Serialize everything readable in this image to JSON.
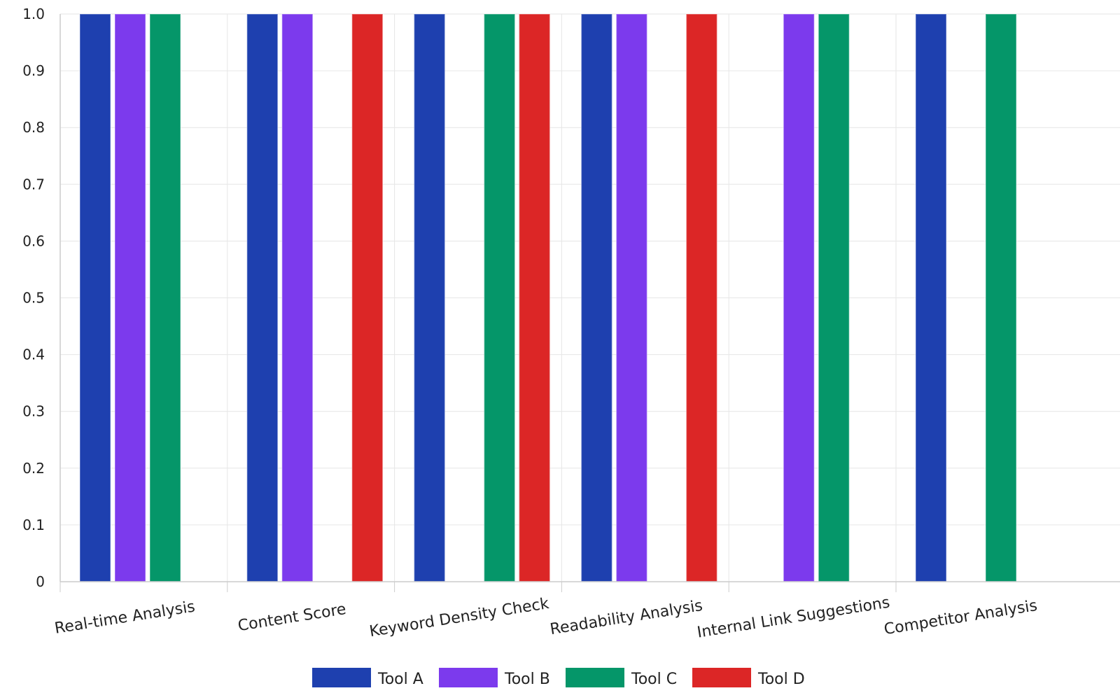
{
  "chart_data": {
    "type": "bar",
    "title": "",
    "xlabel": "",
    "ylabel": "",
    "ylim": [
      0,
      1
    ],
    "yticks": [
      "0",
      "0.1",
      "0.2",
      "0.3",
      "0.4",
      "0.5",
      "0.6",
      "0.7",
      "0.8",
      "0.9",
      "1.0"
    ],
    "grid": true,
    "legend_position": "bottom-center",
    "categories": [
      "Real-time Analysis",
      "Content Score",
      "Keyword Density Check",
      "Readability Analysis",
      "Internal Link Suggestions",
      "Competitor Analysis"
    ],
    "series": [
      {
        "name": "Tool A",
        "color": "#1e40af",
        "values": [
          1,
          1,
          1,
          1,
          0,
          1
        ]
      },
      {
        "name": "Tool B",
        "color": "#7c3aed",
        "values": [
          1,
          1,
          0,
          1,
          1,
          0
        ]
      },
      {
        "name": "Tool C",
        "color": "#059669",
        "values": [
          1,
          0,
          1,
          0,
          1,
          1
        ]
      },
      {
        "name": "Tool D",
        "color": "#dc2626",
        "values": [
          0,
          1,
          1,
          1,
          0,
          0
        ]
      }
    ]
  }
}
